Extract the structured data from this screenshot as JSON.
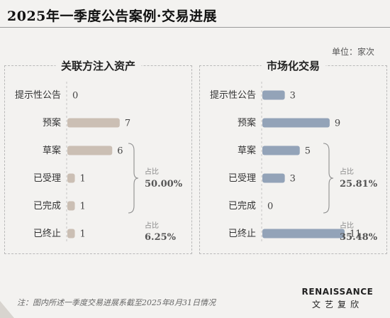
{
  "title": "2025年一季度公告案例·交易进展",
  "unit": "单位：家次",
  "colors": {
    "left_bar": "#cbbfb4",
    "right_bar": "#93a3b8",
    "bracket": "#8f8f8f"
  },
  "chart_data": [
    {
      "type": "bar",
      "orientation": "horizontal",
      "title": "关联方注入资产",
      "categories": [
        "提示性公告",
        "预案",
        "草案",
        "已受理",
        "已完成",
        "已终止"
      ],
      "values": [
        0,
        7,
        6,
        1,
        1,
        1
      ],
      "xlim": [
        0,
        11
      ],
      "grid": false,
      "annotations": [
        {
          "label": "占比",
          "value": "50.00%",
          "spans": [
            "草案",
            "已受理",
            "已完成"
          ]
        },
        {
          "label": "占比",
          "value": "6.25%",
          "spans": [
            "已终止"
          ]
        }
      ]
    },
    {
      "type": "bar",
      "orientation": "horizontal",
      "title": "市场化交易",
      "categories": [
        "提示性公告",
        "预案",
        "草案",
        "已受理",
        "已完成",
        "已终止"
      ],
      "values": [
        3,
        9,
        5,
        3,
        0,
        11
      ],
      "xlim": [
        0,
        11
      ],
      "grid": false,
      "annotations": [
        {
          "label": "占比",
          "value": "25.81%",
          "spans": [
            "草案",
            "已受理",
            "已完成"
          ]
        },
        {
          "label": "占比",
          "value": "35.48%",
          "spans": [
            "已终止"
          ]
        }
      ]
    }
  ],
  "footnote": "注：图内所述一季度交易进展系截至2025年8月31日情况",
  "logo": {
    "main": "RENAISSANCE",
    "sub": "文艺复欣"
  }
}
